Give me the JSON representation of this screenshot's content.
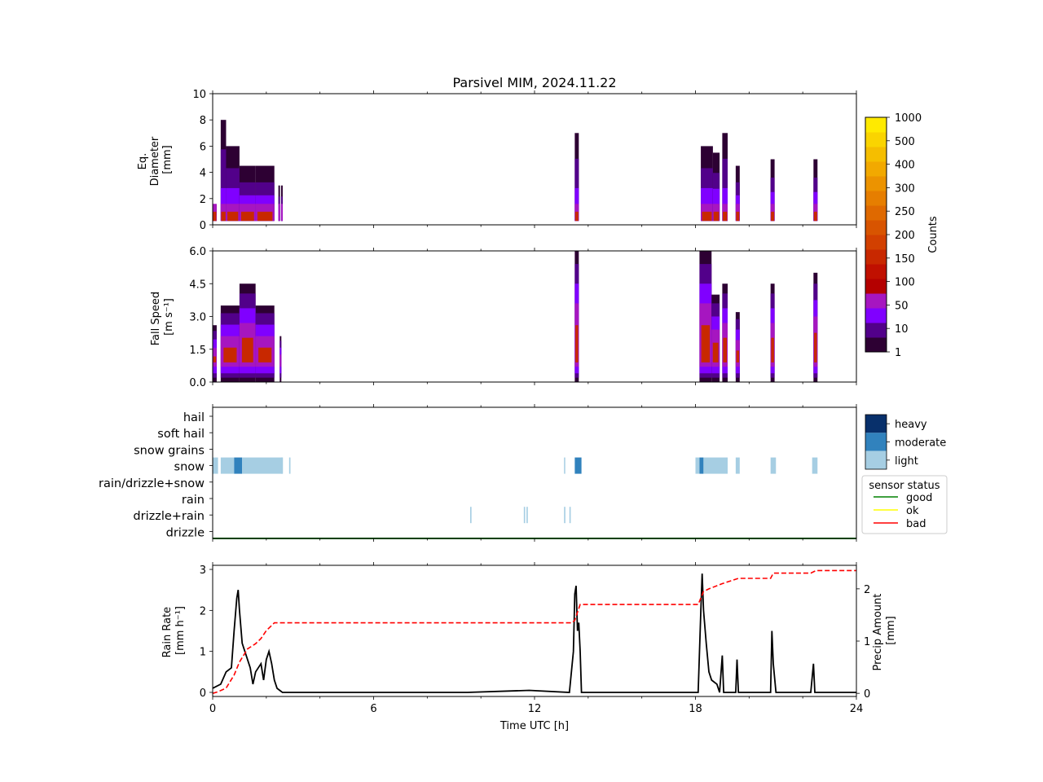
{
  "title": "Parsivel MIM, 2024.11.22",
  "chart_data": [
    {
      "panel": "diameter",
      "type": "heatmap",
      "ylabel": [
        "Eq.",
        "Diameter",
        "[mm]"
      ],
      "ylim": [
        0,
        10
      ],
      "yticks": [
        "0",
        "2",
        "4",
        "6",
        "8",
        "10"
      ],
      "xlim": [
        0,
        24
      ],
      "events": [
        {
          "t0": 0.0,
          "t1": 0.15,
          "dmax": 1.5
        },
        {
          "t0": 0.3,
          "t1": 0.5,
          "dmax": 8.0
        },
        {
          "t0": 0.5,
          "t1": 1.0,
          "dmax": 6.0
        },
        {
          "t0": 1.0,
          "t1": 1.6,
          "dmax": 4.5
        },
        {
          "t0": 1.6,
          "t1": 2.3,
          "dmax": 4.5
        },
        {
          "t0": 2.45,
          "t1": 2.5,
          "dmax": 3.0
        },
        {
          "t0": 2.55,
          "t1": 2.6,
          "dmax": 3.0
        },
        {
          "t0": 13.5,
          "t1": 13.65,
          "dmax": 7.0
        },
        {
          "t0": 18.2,
          "t1": 18.65,
          "dmax": 6.0
        },
        {
          "t0": 18.65,
          "t1": 18.9,
          "dmax": 5.5
        },
        {
          "t0": 19.0,
          "t1": 19.2,
          "dmax": 7.0
        },
        {
          "t0": 19.5,
          "t1": 19.65,
          "dmax": 4.5
        },
        {
          "t0": 20.8,
          "t1": 20.95,
          "dmax": 5.0
        },
        {
          "t0": 22.4,
          "t1": 22.55,
          "dmax": 5.0
        }
      ]
    },
    {
      "panel": "fallspeed",
      "type": "heatmap",
      "ylabel": [
        "Fall Speed",
        "[m s⁻¹]"
      ],
      "ylim": [
        0,
        6
      ],
      "yticks": [
        "0.0",
        "1.5",
        "3.0",
        "4.5",
        "6.0"
      ],
      "xlim": [
        0,
        24
      ],
      "events": [
        {
          "t0": 0.0,
          "t1": 0.15,
          "vmax": 2.6
        },
        {
          "t0": 0.3,
          "t1": 1.0,
          "vmax": 3.5
        },
        {
          "t0": 1.0,
          "t1": 1.6,
          "vmax": 4.5
        },
        {
          "t0": 1.6,
          "t1": 2.3,
          "vmax": 3.5
        },
        {
          "t0": 2.5,
          "t1": 2.55,
          "vmax": 2.1
        },
        {
          "t0": 13.5,
          "t1": 13.65,
          "vmax": 6.0
        },
        {
          "t0": 18.15,
          "t1": 18.6,
          "vmax": 6.0
        },
        {
          "t0": 18.6,
          "t1": 18.9,
          "vmax": 4.0
        },
        {
          "t0": 19.0,
          "t1": 19.2,
          "vmax": 4.5
        },
        {
          "t0": 19.5,
          "t1": 19.65,
          "vmax": 3.2
        },
        {
          "t0": 20.8,
          "t1": 20.95,
          "vmax": 4.5
        },
        {
          "t0": 22.4,
          "t1": 22.55,
          "vmax": 5.0
        }
      ]
    },
    {
      "panel": "precip_type",
      "type": "heatmap",
      "categories": [
        "hail",
        "soft hail",
        "snow grains",
        "snow",
        "rain/drizzle+snow",
        "rain",
        "drizzle+rain",
        "drizzle"
      ],
      "intensity_legend": [
        "heavy",
        "moderate",
        "light"
      ],
      "intensity_colors": [
        "#08306b",
        "#3182bd",
        "#a6cee3"
      ],
      "status_legend_title": "sensor status",
      "status_legend": [
        {
          "label": "good",
          "color": "#008000"
        },
        {
          "label": "ok",
          "color": "#ffff00"
        },
        {
          "label": "bad",
          "color": "#ff0000"
        }
      ],
      "sensor_status": "good",
      "segments": [
        {
          "cat": "snow",
          "t0": 0.0,
          "t1": 0.2,
          "level": "light"
        },
        {
          "cat": "snow",
          "t0": 0.3,
          "t1": 0.8,
          "level": "light"
        },
        {
          "cat": "snow",
          "t0": 0.8,
          "t1": 1.1,
          "level": "moderate"
        },
        {
          "cat": "snow",
          "t0": 1.1,
          "t1": 2.6,
          "level": "light"
        },
        {
          "cat": "snow",
          "t0": 2.55,
          "t1": 2.62,
          "level": "light"
        },
        {
          "cat": "snow",
          "t0": 2.85,
          "t1": 2.9,
          "level": "light"
        },
        {
          "cat": "snow",
          "t0": 13.1,
          "t1": 13.13,
          "level": "light"
        },
        {
          "cat": "snow",
          "t0": 13.5,
          "t1": 13.75,
          "level": "moderate"
        },
        {
          "cat": "snow",
          "t0": 18.0,
          "t1": 18.15,
          "level": "light"
        },
        {
          "cat": "snow",
          "t0": 18.15,
          "t1": 18.3,
          "level": "moderate"
        },
        {
          "cat": "snow",
          "t0": 18.3,
          "t1": 19.2,
          "level": "light"
        },
        {
          "cat": "snow",
          "t0": 19.5,
          "t1": 19.65,
          "level": "light"
        },
        {
          "cat": "snow",
          "t0": 20.8,
          "t1": 21.0,
          "level": "light"
        },
        {
          "cat": "snow",
          "t0": 22.35,
          "t1": 22.55,
          "level": "light"
        },
        {
          "cat": "drizzle+rain",
          "t0": 9.6,
          "t1": 9.65,
          "level": "light"
        },
        {
          "cat": "drizzle+rain",
          "t0": 11.6,
          "t1": 11.65,
          "level": "light"
        },
        {
          "cat": "drizzle+rain",
          "t0": 11.7,
          "t1": 11.75,
          "level": "light"
        },
        {
          "cat": "drizzle+rain",
          "t0": 13.1,
          "t1": 13.15,
          "level": "light"
        },
        {
          "cat": "drizzle+rain",
          "t0": 13.3,
          "t1": 13.35,
          "level": "light"
        }
      ]
    },
    {
      "panel": "rain",
      "type": "line",
      "xlabel": "Time UTC [h]",
      "ylabel": [
        "Rain Rate",
        "[mm h⁻¹]"
      ],
      "ylabel_right": [
        "Precip Amount",
        "[mm]"
      ],
      "xlim": [
        0,
        24
      ],
      "ylim": [
        -0.1,
        3.1
      ],
      "ylim_right": [
        -0.06,
        2.45
      ],
      "xticks": [
        "0",
        "6",
        "12",
        "18",
        "24"
      ],
      "yticks": [
        "0",
        "1",
        "2",
        "3"
      ],
      "yticks_right": [
        "0",
        "1",
        "2"
      ],
      "series": [
        {
          "role": "rain-rate",
          "color": "#000000",
          "style": "solid",
          "x": [
            0,
            0.3,
            0.5,
            0.7,
            0.8,
            0.9,
            0.95,
            1.0,
            1.1,
            1.2,
            1.4,
            1.5,
            1.6,
            1.8,
            1.9,
            2.0,
            2.1,
            2.2,
            2.3,
            2.4,
            2.5,
            2.6,
            3.0,
            9.5,
            11.8,
            13.3,
            13.45,
            13.5,
            13.55,
            13.6,
            13.65,
            13.7,
            13.75,
            14.0,
            18.1,
            18.2,
            18.25,
            18.3,
            18.4,
            18.5,
            18.6,
            18.8,
            18.9,
            19.0,
            19.05,
            19.2,
            19.5,
            19.55,
            19.6,
            19.7,
            20.8,
            20.85,
            20.9,
            21.0,
            22.3,
            22.4,
            22.45,
            22.55,
            24
          ],
          "y": [
            0.1,
            0.2,
            0.5,
            0.6,
            1.5,
            2.3,
            2.5,
            2.0,
            1.2,
            1.0,
            0.6,
            0.2,
            0.5,
            0.7,
            0.3,
            0.8,
            1.0,
            0.7,
            0.3,
            0.1,
            0.05,
            0.0,
            0.0,
            0.0,
            0.05,
            0.0,
            1.0,
            2.4,
            2.6,
            1.5,
            1.7,
            1.0,
            0.0,
            0.0,
            0.0,
            2.0,
            2.9,
            2.0,
            1.2,
            0.5,
            0.3,
            0.2,
            0.0,
            0.9,
            0.0,
            0.0,
            0.0,
            0.8,
            0.0,
            0.0,
            0.0,
            1.5,
            0.7,
            0.0,
            0.0,
            0.7,
            0.0,
            0.0,
            0.0
          ]
        },
        {
          "role": "precip-amount",
          "color": "#ff0000",
          "style": "dashed",
          "axis": "right",
          "x": [
            0,
            0.2,
            0.5,
            0.8,
            1.0,
            1.3,
            1.6,
            1.8,
            2.0,
            2.2,
            2.3,
            13.4,
            13.5,
            13.6,
            13.7,
            13.8,
            18.1,
            18.3,
            18.5,
            19.0,
            19.3,
            19.6,
            20.8,
            20.9,
            22.3,
            22.5,
            24
          ],
          "y": [
            0.0,
            0.03,
            0.1,
            0.35,
            0.6,
            0.85,
            0.95,
            1.05,
            1.2,
            1.3,
            1.35,
            1.35,
            1.4,
            1.55,
            1.7,
            1.7,
            1.7,
            1.95,
            2.0,
            2.1,
            2.15,
            2.2,
            2.2,
            2.3,
            2.3,
            2.35,
            2.35
          ]
        }
      ]
    }
  ],
  "colorbar": {
    "label": "Counts",
    "ticks": [
      "1",
      "10",
      "50",
      "100",
      "150",
      "200",
      "250",
      "300",
      "400",
      "500",
      "1000"
    ],
    "colors": [
      "#2d0033",
      "#52008a",
      "#8000ff",
      "#a616c0",
      "#b40000",
      "#c01000",
      "#c82800",
      "#d24000",
      "#d85400",
      "#df6900",
      "#e67e00",
      "#ec9300",
      "#f2a900",
      "#f5be00",
      "#fad400",
      "#ffea00"
    ]
  }
}
